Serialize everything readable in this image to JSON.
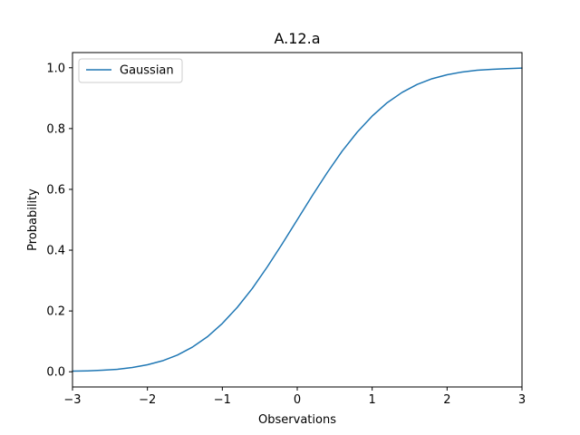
{
  "chart_data": {
    "type": "line",
    "title": "A.12.a",
    "xlabel": "Observations",
    "ylabel": "Probability",
    "xlim": [
      -3,
      3
    ],
    "ylim": [
      -0.05,
      1.05
    ],
    "xticks": [
      -3,
      -2,
      -1,
      0,
      1,
      2,
      3
    ],
    "xtick_labels": [
      "−3",
      "−2",
      "−1",
      "0",
      "1",
      "2",
      "3"
    ],
    "yticks": [
      0.0,
      0.2,
      0.4,
      0.6,
      0.8,
      1.0
    ],
    "ytick_labels": [
      "0.0",
      "0.2",
      "0.4",
      "0.6",
      "0.8",
      "1.0"
    ],
    "grid": false,
    "legend": {
      "position": "upper left"
    },
    "series": [
      {
        "name": "Gaussian",
        "color": "#1f77b4",
        "x": [
          -3.0,
          -2.8,
          -2.6,
          -2.4,
          -2.2,
          -2.0,
          -1.8,
          -1.6,
          -1.4,
          -1.2,
          -1.0,
          -0.8,
          -0.6,
          -0.4,
          -0.2,
          0.0,
          0.2,
          0.4,
          0.6,
          0.8,
          1.0,
          1.2,
          1.4,
          1.6,
          1.8,
          2.0,
          2.2,
          2.4,
          2.6,
          2.8,
          3.0
        ],
        "y": [
          0.002,
          0.003,
          0.005,
          0.008,
          0.014,
          0.023,
          0.036,
          0.055,
          0.081,
          0.115,
          0.159,
          0.212,
          0.274,
          0.345,
          0.421,
          0.5,
          0.579,
          0.655,
          0.726,
          0.788,
          0.841,
          0.885,
          0.919,
          0.945,
          0.964,
          0.977,
          0.986,
          0.992,
          0.995,
          0.997,
          0.999
        ]
      }
    ]
  }
}
